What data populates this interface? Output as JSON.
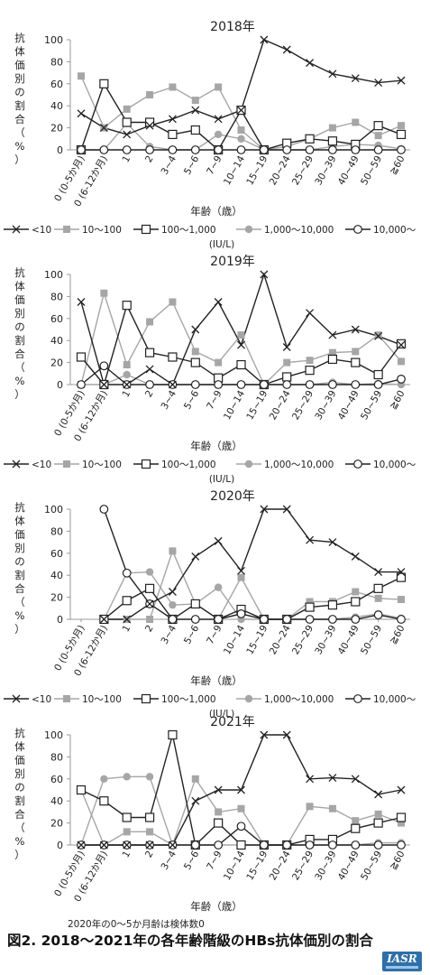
{
  "figure": {
    "title": "図2. 2018〜2021年の各年齢階級のHBs抗体価別の割合",
    "note": "2020年の0〜5か月齢は検体数0",
    "logo_text": "IASR"
  },
  "colors": {
    "line": "#222222",
    "gray": "#a6a6a6",
    "axis": "#999999"
  },
  "chart_data": [
    {
      "type": "line",
      "title": "2018年",
      "ylabel": "抗体価別の割合（%）",
      "xlabel": "年齢（歳）",
      "ylim": [
        0,
        100
      ],
      "yticks": [
        0,
        20,
        40,
        60,
        80,
        100
      ],
      "categories": [
        "0 (0-5か月)",
        "0 (6-12か月)",
        "1",
        "2",
        "3~4",
        "5~6",
        "7~9",
        "10~14",
        "15~19",
        "20~24",
        "25~29",
        "30~39",
        "40~49",
        "50~59",
        "≧60"
      ],
      "series": [
        {
          "name": "<10",
          "marker": "x",
          "values": [
            33,
            20,
            14,
            22,
            28,
            36,
            28,
            36,
            100,
            91,
            79,
            69,
            65,
            61,
            63
          ]
        },
        {
          "name": "10〜100",
          "marker": "square-gray",
          "values": [
            67,
            20,
            37,
            50,
            57,
            45,
            57,
            18,
            0,
            3,
            10,
            20,
            25,
            13,
            22
          ]
        },
        {
          "name": "100〜1,000",
          "marker": "square-open",
          "values": [
            0,
            60,
            25,
            25,
            14,
            18,
            0,
            36,
            0,
            6,
            10,
            8,
            5,
            22,
            14
          ]
        },
        {
          "name": "1,000〜10,000",
          "marker": "circle-gray",
          "values": [
            0,
            0,
            24,
            3,
            0,
            0,
            14,
            10,
            0,
            0,
            0,
            3,
            5,
            4,
            1
          ]
        },
        {
          "name": "10,000〜",
          "marker": "circle-open",
          "values": [
            0,
            0,
            0,
            0,
            0,
            0,
            0,
            0,
            0,
            0,
            0,
            0,
            0,
            0,
            0
          ]
        }
      ]
    },
    {
      "type": "line",
      "title": "2019年",
      "ylabel": "抗体価別の割合（%）",
      "xlabel": "年齢（歳）",
      "ylim": [
        0,
        100
      ],
      "yticks": [
        0,
        20,
        40,
        60,
        80,
        100
      ],
      "categories": [
        "0 (0-5か月)",
        "0 (6-12か月)",
        "1",
        "2",
        "3~4",
        "5~6",
        "7~9",
        "10~14",
        "15~19",
        "20~24",
        "25~29",
        "30~39",
        "40~49",
        "50~59",
        "≧60"
      ],
      "series": [
        {
          "name": "<10",
          "marker": "x",
          "values": [
            75,
            0,
            0,
            14,
            0,
            50,
            75,
            36,
            100,
            34,
            65,
            45,
            50,
            44,
            36
          ]
        },
        {
          "name": "10〜100",
          "marker": "square-gray",
          "values": [
            0,
            83,
            18,
            57,
            75,
            30,
            20,
            45,
            0,
            20,
            22,
            29,
            30,
            45,
            21
          ]
        },
        {
          "name": "100〜1,000",
          "marker": "square-open",
          "values": [
            25,
            0,
            72,
            29,
            25,
            20,
            6,
            18,
            0,
            7,
            13,
            23,
            20,
            9,
            37
          ]
        },
        {
          "name": "1,000〜10,000",
          "marker": "circle-gray",
          "values": [
            0,
            0,
            9,
            0,
            0,
            0,
            0,
            0,
            0,
            0,
            0,
            2,
            0,
            1,
            0
          ]
        },
        {
          "name": "10,000〜",
          "marker": "circle-open",
          "values": [
            0,
            17,
            0,
            0,
            0,
            0,
            0,
            0,
            0,
            0,
            0,
            0,
            0,
            0,
            5
          ]
        }
      ]
    },
    {
      "type": "line",
      "title": "2020年",
      "ylabel": "抗体価別の割合（%）",
      "xlabel": "年齢（歳）",
      "ylim": [
        0,
        100
      ],
      "yticks": [
        0,
        20,
        40,
        60,
        80,
        100
      ],
      "categories": [
        "0 (0-5か月)",
        "0 (6-12か月)",
        "1",
        "2",
        "3~4",
        "5~6",
        "7~9",
        "10~14",
        "15~19",
        "20~24",
        "25~29",
        "30~39",
        "40~49",
        "50~59",
        "≧60"
      ],
      "series": [
        {
          "name": "<10",
          "marker": "x",
          "values": [
            null,
            0,
            0,
            14,
            25,
            57,
            71,
            44,
            100,
            100,
            72,
            70,
            57,
            43,
            43
          ]
        },
        {
          "name": "10〜100",
          "marker": "square-gray",
          "values": [
            null,
            0,
            0,
            0,
            62,
            14,
            0,
            38,
            0,
            0,
            16,
            16,
            25,
            19,
            18
          ]
        },
        {
          "name": "100〜1,000",
          "marker": "square-open",
          "values": [
            null,
            0,
            17,
            28,
            0,
            14,
            0,
            9,
            0,
            0,
            11,
            13,
            16,
            28,
            38
          ]
        },
        {
          "name": "1,000〜10,000",
          "marker": "circle-gray",
          "values": [
            null,
            0,
            42,
            43,
            13,
            14,
            29,
            0,
            0,
            0,
            0,
            0,
            2,
            5,
            1
          ]
        },
        {
          "name": "10,000〜",
          "marker": "circle-open",
          "values": [
            null,
            100,
            42,
            14,
            0,
            0,
            0,
            5,
            0,
            0,
            0,
            0,
            0,
            4,
            0
          ]
        }
      ]
    },
    {
      "type": "line",
      "title": "2021年",
      "ylabel": "抗体価別の割合（%）",
      "xlabel": "年齢（歳）",
      "ylim": [
        0,
        100
      ],
      "yticks": [
        0,
        20,
        40,
        60,
        80,
        100
      ],
      "categories": [
        "0 (0-5か月)",
        "0 (6-12か月)",
        "1",
        "2",
        "3~4",
        "5~6",
        "7~9",
        "10~14",
        "15~19",
        "20~24",
        "25~29",
        "30~39",
        "40~49",
        "50~59",
        "≧60"
      ],
      "series": [
        {
          "name": "<10",
          "marker": "x",
          "values": [
            0,
            0,
            0,
            0,
            0,
            40,
            50,
            50,
            100,
            100,
            60,
            61,
            60,
            46,
            50
          ]
        },
        {
          "name": "10〜100",
          "marker": "square-gray",
          "values": [
            50,
            0,
            12,
            12,
            0,
            60,
            30,
            33,
            0,
            0,
            35,
            33,
            22,
            28,
            20
          ]
        },
        {
          "name": "100〜1,000",
          "marker": "square-open",
          "values": [
            50,
            40,
            25,
            25,
            100,
            0,
            20,
            0,
            0,
            0,
            5,
            5,
            15,
            20,
            25
          ]
        },
        {
          "name": "1,000〜10,000",
          "marker": "circle-gray",
          "values": [
            0,
            60,
            62,
            62,
            0,
            0,
            0,
            0,
            0,
            0,
            0,
            0,
            0,
            2,
            2
          ]
        },
        {
          "name": "10,000〜",
          "marker": "circle-open",
          "values": [
            0,
            0,
            0,
            0,
            0,
            0,
            0,
            17,
            0,
            0,
            0,
            0,
            0,
            0,
            0
          ]
        }
      ]
    }
  ],
  "legend_unit": "(IU/L)"
}
